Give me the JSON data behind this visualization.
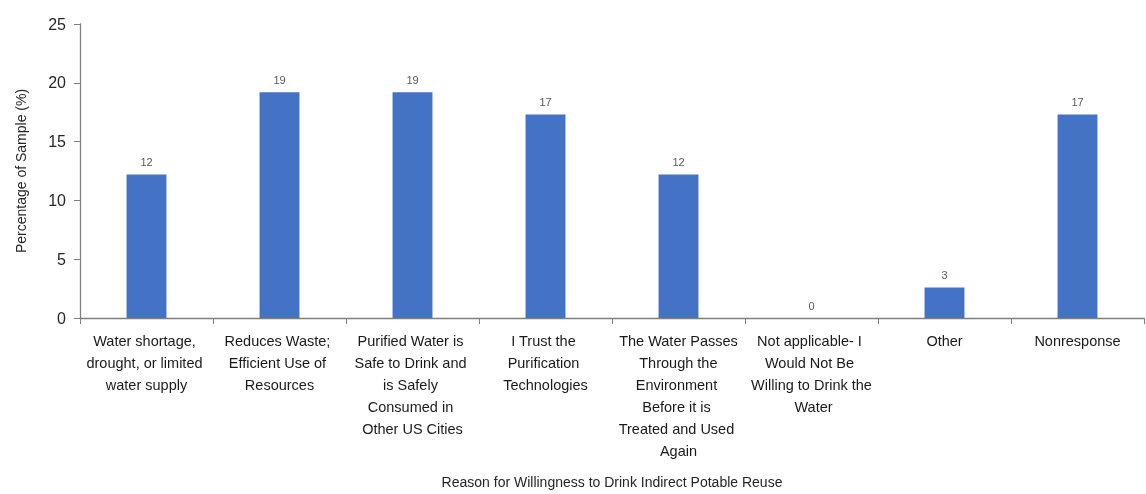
{
  "chart_data": {
    "type": "bar",
    "xlabel": "Reason for Willingness to Drink Indirect Potable Reuse",
    "ylabel": "Percentage of Sample (%)",
    "categories": [
      "Water shortage, drought, or limited water supply",
      "Reduces Waste; Efficient Use of Resources",
      "Purified Water is Safe to Drink and is Safely Consumed in Other US Cities",
      "I Trust the Purification Technologies",
      "The Water Passes Through the Environment Before it is Treated and Used Again",
      "Not applicable- I Would Not Be Willing to Drink the Water",
      "Other",
      "Nonresponse"
    ],
    "values": [
      12.2,
      19.2,
      19.2,
      17.3,
      12.2,
      0,
      2.6,
      17.3
    ],
    "value_labels": [
      "12",
      "19",
      "19",
      "17",
      "12",
      "0",
      "3",
      "17"
    ],
    "color": "#4472c4",
    "ylim": [
      0,
      25
    ],
    "yticks": [
      0,
      5,
      10,
      15,
      20,
      25
    ]
  }
}
